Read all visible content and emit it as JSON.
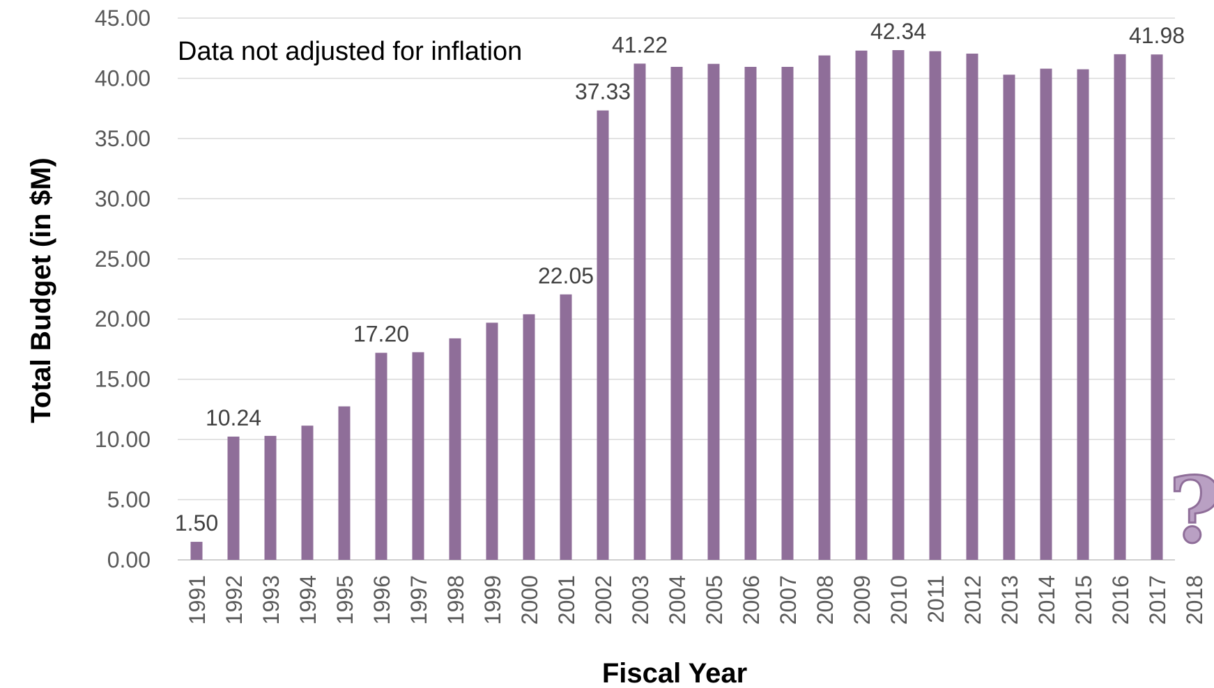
{
  "chart_data": {
    "type": "bar",
    "categories": [
      "1991",
      "1992",
      "1993",
      "1994",
      "1995",
      "1996",
      "1997",
      "1998",
      "1999",
      "2000",
      "2001",
      "2002",
      "2003",
      "2004",
      "2005",
      "2006",
      "2007",
      "2008",
      "2009",
      "2010",
      "2011",
      "2012",
      "2013",
      "2014",
      "2015",
      "2016",
      "2017",
      "2018"
    ],
    "values": [
      1.5,
      10.24,
      10.3,
      11.15,
      12.75,
      17.2,
      17.25,
      18.4,
      19.7,
      20.4,
      22.05,
      37.33,
      41.22,
      40.95,
      41.2,
      40.95,
      40.95,
      41.9,
      42.3,
      42.34,
      42.25,
      42.05,
      40.3,
      40.8,
      40.75,
      42.0,
      41.98,
      null
    ],
    "data_labels": [
      {
        "category": "1991",
        "text": "1.50"
      },
      {
        "category": "1992",
        "text": "10.24"
      },
      {
        "category": "1996",
        "text": "17.20"
      },
      {
        "category": "2001",
        "text": "22.05"
      },
      {
        "category": "2002",
        "text": "37.33"
      },
      {
        "category": "2003",
        "text": "41.22"
      },
      {
        "category": "2010",
        "text": "42.34"
      },
      {
        "category": "2017",
        "text": "41.98"
      }
    ],
    "title": "",
    "xlabel": "Fiscal Year",
    "ylabel": "Total Budget (in $M)",
    "ylim": [
      0,
      45
    ],
    "yticks": [
      "0.00",
      "5.00",
      "10.00",
      "15.00",
      "20.00",
      "25.00",
      "30.00",
      "35.00",
      "40.00",
      "45.00"
    ],
    "annotation": "Data not adjusted for inflation",
    "pending_marker": "?",
    "grid": true,
    "legend": "none",
    "bar_color": "#8f6e99"
  }
}
